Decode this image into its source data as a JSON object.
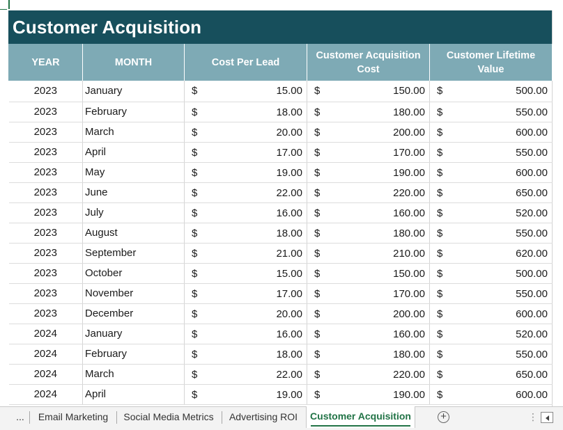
{
  "sheet": {
    "title": "Customer Acquisition",
    "headers": {
      "year": "YEAR",
      "month": "MONTH",
      "cpl": "Cost Per Lead",
      "cac": "Customer Acquisition Cost",
      "clv": "Customer Lifetime Value"
    },
    "currency_symbol": "$",
    "rows": [
      {
        "year": "2023",
        "month": "January",
        "cpl": "15.00",
        "cac": "150.00",
        "clv": "500.00"
      },
      {
        "year": "2023",
        "month": "February",
        "cpl": "18.00",
        "cac": "180.00",
        "clv": "550.00"
      },
      {
        "year": "2023",
        "month": "March",
        "cpl": "20.00",
        "cac": "200.00",
        "clv": "600.00"
      },
      {
        "year": "2023",
        "month": "April",
        "cpl": "17.00",
        "cac": "170.00",
        "clv": "550.00"
      },
      {
        "year": "2023",
        "month": "May",
        "cpl": "19.00",
        "cac": "190.00",
        "clv": "600.00"
      },
      {
        "year": "2023",
        "month": "June",
        "cpl": "22.00",
        "cac": "220.00",
        "clv": "650.00"
      },
      {
        "year": "2023",
        "month": "July",
        "cpl": "16.00",
        "cac": "160.00",
        "clv": "520.00"
      },
      {
        "year": "2023",
        "month": "August",
        "cpl": "18.00",
        "cac": "180.00",
        "clv": "550.00"
      },
      {
        "year": "2023",
        "month": "September",
        "cpl": "21.00",
        "cac": "210.00",
        "clv": "620.00"
      },
      {
        "year": "2023",
        "month": "October",
        "cpl": "15.00",
        "cac": "150.00",
        "clv": "500.00"
      },
      {
        "year": "2023",
        "month": "November",
        "cpl": "17.00",
        "cac": "170.00",
        "clv": "550.00"
      },
      {
        "year": "2023",
        "month": "December",
        "cpl": "20.00",
        "cac": "200.00",
        "clv": "600.00"
      },
      {
        "year": "2024",
        "month": "January",
        "cpl": "16.00",
        "cac": "160.00",
        "clv": "520.00"
      },
      {
        "year": "2024",
        "month": "February",
        "cpl": "18.00",
        "cac": "180.00",
        "clv": "550.00"
      },
      {
        "year": "2024",
        "month": "March",
        "cpl": "22.00",
        "cac": "220.00",
        "clv": "650.00"
      },
      {
        "year": "2024",
        "month": "April",
        "cpl": "19.00",
        "cac": "190.00",
        "clv": "600.00"
      }
    ]
  },
  "tabs": {
    "overflow_label": "...",
    "items": [
      {
        "label": "Email Marketing",
        "active": false
      },
      {
        "label": "Social Media Metrics",
        "active": false
      },
      {
        "label": "Advertising ROI",
        "active": false
      },
      {
        "label": "Customer Acquisition",
        "active": true
      }
    ],
    "add_label": "+"
  },
  "colors": {
    "title_bg": "#174f5c",
    "header_bg": "#7eaab5",
    "active_tab_text": "#217346"
  },
  "icons": {
    "add_sheet": "plus-circle-icon",
    "scroll_left": "triangle-left-icon",
    "tab_options": "vertical-dots-icon"
  }
}
